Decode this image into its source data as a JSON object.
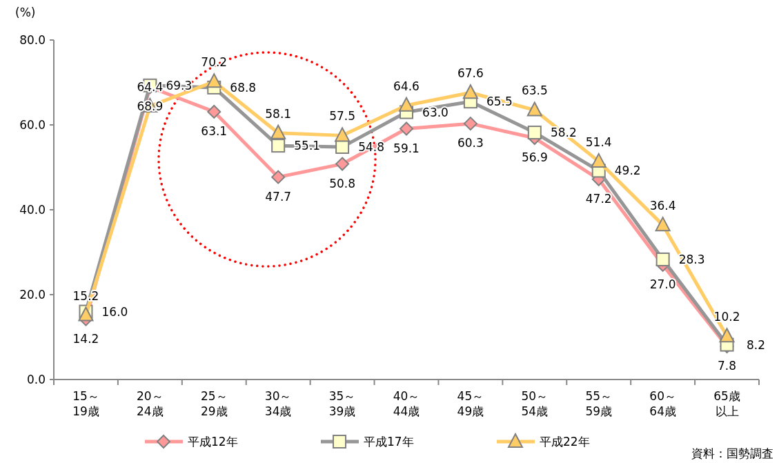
{
  "chart_data": {
    "type": "line",
    "ylabel": "(%)",
    "categories": [
      "15～19歳",
      "20～24歳",
      "25～29歳",
      "30～34歳",
      "35～39歳",
      "40～44歳",
      "45～49歳",
      "50～54歳",
      "55～59歳",
      "60～64歳",
      "65歳以上"
    ],
    "series": [
      {
        "name": "平成12年",
        "color": "#ff9999",
        "marker": "diamond",
        "values": [
          14.2,
          68.9,
          63.1,
          47.7,
          50.8,
          59.1,
          60.3,
          56.9,
          47.2,
          27.0,
          7.8
        ],
        "value_labels": [
          "14.2",
          "68.9",
          "63.1",
          "47.7",
          "50.8",
          "59.1",
          "60.3",
          "56.9",
          "47.2",
          "27.0",
          "7.8"
        ]
      },
      {
        "name": "平成17年",
        "color": "#969696",
        "marker": "square",
        "values": [
          16.0,
          69.3,
          68.8,
          55.1,
          54.8,
          63.0,
          65.5,
          58.2,
          49.2,
          28.3,
          8.2
        ],
        "value_labels": [
          "16.0",
          "69.3",
          "68.8",
          "55.1",
          "54.8",
          "63.0",
          "65.5",
          "58.2",
          "49.2",
          "28.3",
          "8.2"
        ]
      },
      {
        "name": "平成22年",
        "color": "#ffcc66",
        "marker": "triangle",
        "values": [
          15.2,
          64.4,
          70.2,
          58.1,
          57.5,
          64.6,
          67.6,
          63.5,
          51.4,
          36.4,
          10.2
        ],
        "value_labels": [
          "15.2",
          "64.4",
          "70.2",
          "58.1",
          "57.5",
          "64.6",
          "67.6",
          "63.5",
          "51.4",
          "36.4",
          "10.2"
        ]
      }
    ],
    "ylim": [
      0,
      80
    ],
    "yticks": [
      {
        "value": 0,
        "label": "0.0"
      },
      {
        "value": 20,
        "label": "20.0"
      },
      {
        "value": 40,
        "label": "40.0"
      },
      {
        "value": 60,
        "label": "60.0"
      },
      {
        "value": 80,
        "label": "80.0"
      }
    ],
    "legend": "bottom",
    "grid": false,
    "annotations": [
      "資料：国勢調査"
    ]
  }
}
